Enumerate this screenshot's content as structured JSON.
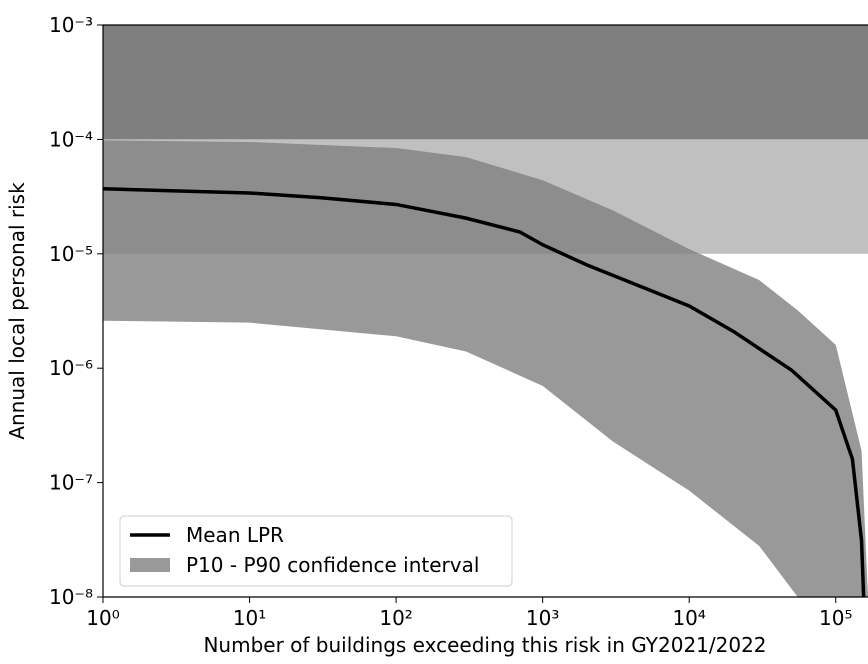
{
  "chart_data": {
    "type": "line",
    "xlabel": "Number of buildings exceeding this risk in GY2021/2022",
    "ylabel": "Annual local personal risk",
    "xscale": "log",
    "yscale": "log",
    "xlim": [
      1,
      166000
    ],
    "ylim": [
      1e-08,
      0.001
    ],
    "xticks": [
      {
        "value": 1,
        "label": "10⁰"
      },
      {
        "value": 10,
        "label": "10¹"
      },
      {
        "value": 100,
        "label": "10²"
      },
      {
        "value": 1000,
        "label": "10³"
      },
      {
        "value": 10000,
        "label": "10⁴"
      },
      {
        "value": 100000,
        "label": "10⁵"
      }
    ],
    "yticks": [
      {
        "value": 1e-08,
        "label": "10⁻⁸"
      },
      {
        "value": 1e-07,
        "label": "10⁻⁷"
      },
      {
        "value": 1e-06,
        "label": "10⁻⁶"
      },
      {
        "value": 1e-05,
        "label": "10⁻⁵"
      },
      {
        "value": 0.0001,
        "label": "10⁻⁴"
      },
      {
        "value": 0.001,
        "label": "10⁻³"
      }
    ],
    "shaded_regions": [
      {
        "ymin": 0.0001,
        "ymax": 0.001,
        "color": "#7f7f7f"
      },
      {
        "ymin": 1e-05,
        "ymax": 0.0001,
        "color": "#c0c0c0"
      }
    ],
    "band": {
      "name": "P10 - P90 confidence interval",
      "color": "#7f7f7f",
      "x": [
        1,
        10,
        100,
        300,
        1000,
        3000,
        10000,
        30000,
        55000,
        100000,
        150000,
        166000
      ],
      "lower": [
        2.6e-06,
        2.5e-06,
        1.9e-06,
        1.4e-06,
        7e-07,
        2.3e-07,
        8.5e-08,
        2.8e-08,
        1e-08,
        null,
        null,
        null
      ],
      "upper": [
        9.8e-05,
        9.5e-05,
        8.4e-05,
        7e-05,
        4.4e-05,
        2.4e-05,
        1.1e-05,
        5.9e-06,
        3.2e-06,
        1.6e-06,
        1.9e-07,
        1e-08
      ]
    },
    "series": [
      {
        "name": "Mean LPR",
        "color": "#000000",
        "x": [
          1,
          10,
          30,
          100,
          300,
          700,
          1000,
          2000,
          5000,
          10000,
          20000,
          50000,
          100000,
          130000,
          150000,
          155000
        ],
        "values": [
          3.7e-05,
          3.4e-05,
          3.1e-05,
          2.7e-05,
          2.05e-05,
          1.55e-05,
          1.2e-05,
          8e-06,
          5e-06,
          3.5e-06,
          2.1e-06,
          9.6e-07,
          4.3e-07,
          1.6e-07,
          3.1e-08,
          1e-08
        ]
      }
    ],
    "legend": "lower left"
  }
}
